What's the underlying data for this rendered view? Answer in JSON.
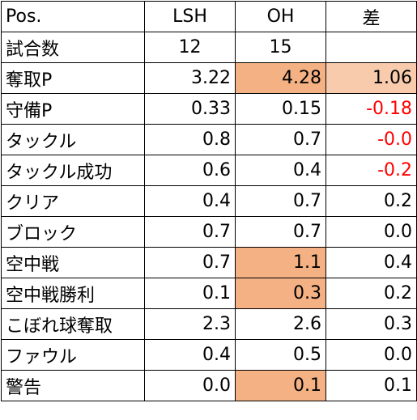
{
  "headers": [
    "Pos.",
    "LSH",
    "OH",
    "差"
  ],
  "rows": [
    {
      "label": "試合数",
      "lsh": "12",
      "oh": "15",
      "diff": ""
    },
    {
      "label": "奪取P",
      "lsh": "3.22",
      "oh": "4.28",
      "diff": "1.06"
    },
    {
      "label": "守備P",
      "lsh": "0.33",
      "oh": "0.15",
      "diff": "-0.18"
    },
    {
      "label": "タックル",
      "lsh": "0.8",
      "oh": "0.7",
      "diff": "-0.0"
    },
    {
      "label": "タックル成功",
      "lsh": "0.6",
      "oh": "0.4",
      "diff": "-0.2"
    },
    {
      "label": "クリア",
      "lsh": "0.4",
      "oh": "0.7",
      "diff": "0.2"
    },
    {
      "label": "ブロック",
      "lsh": "0.7",
      "oh": "0.7",
      "diff": "0.0"
    },
    {
      "label": "空中戦",
      "lsh": "0.7",
      "oh": "1.1",
      "diff": "0.4"
    },
    {
      "label": "空中戦勝利",
      "lsh": "0.1",
      "oh": "0.3",
      "diff": "0.2"
    },
    {
      "label": "こぼれ球奪取",
      "lsh": "2.3",
      "oh": "2.6",
      "diff": "0.3"
    },
    {
      "label": "ファウル",
      "lsh": "0.4",
      "oh": "0.5",
      "diff": "0.0"
    },
    {
      "label": "警告",
      "lsh": "0.0",
      "oh": "0.1",
      "diff": "0.1"
    }
  ],
  "colors": {
    "highlight_strong": "#f4b183",
    "highlight_light": "#f8cbad",
    "negative": "#ff0000"
  }
}
